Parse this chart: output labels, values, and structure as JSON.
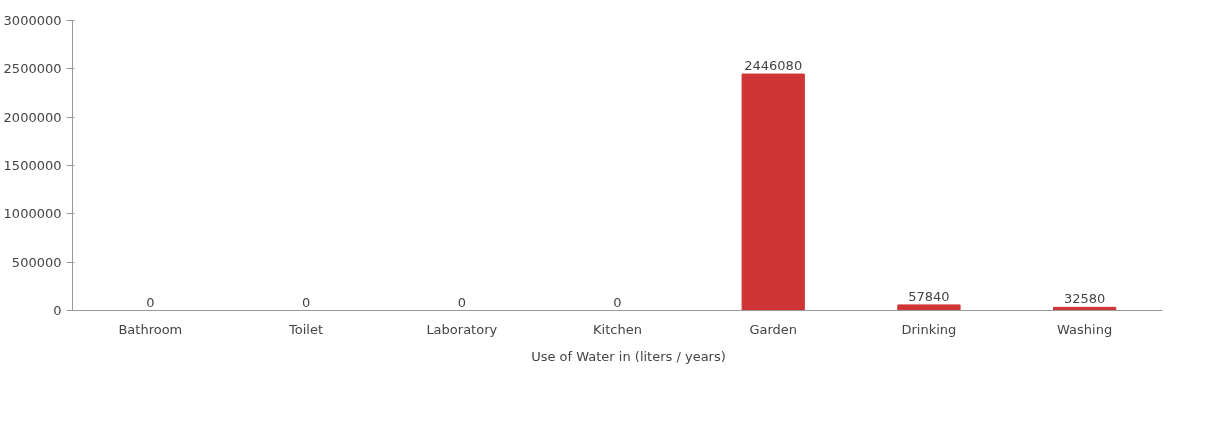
{
  "chart_data": {
    "type": "bar",
    "categories": [
      "Bathroom",
      "Toilet",
      "Laboratory",
      "Kitchen",
      "Garden",
      "Drinking",
      "Washing"
    ],
    "series": [
      {
        "name": "Use of Water in (liters / years)",
        "color": "#d03535",
        "values": [
          0,
          0,
          0,
          0,
          2446080,
          57840,
          32580
        ]
      }
    ],
    "ylim": [
      0,
      3000000
    ],
    "yticks": [
      0,
      500000,
      1000000,
      1500000,
      2000000,
      2500000,
      3000000
    ],
    "data_labels": true,
    "grid": false,
    "legend": "bottom"
  }
}
